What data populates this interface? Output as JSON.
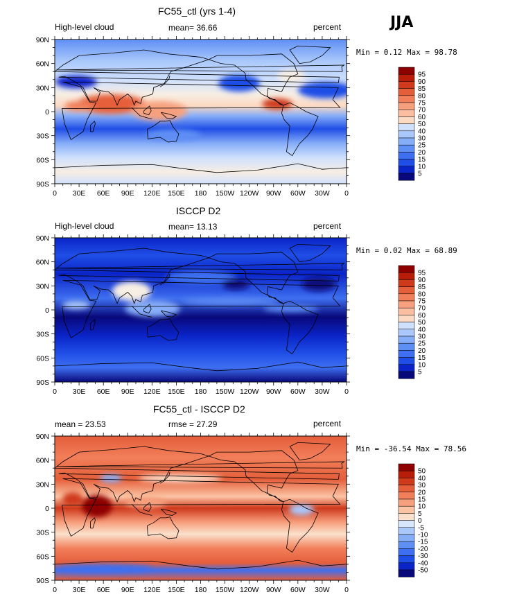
{
  "season": "JJA",
  "x_ticks": [
    "0",
    "30E",
    "60E",
    "90E",
    "120E",
    "150E",
    "180",
    "150W",
    "120W",
    "90W",
    "60W",
    "30W",
    "0"
  ],
  "y_ticks": [
    "90N",
    "60N",
    "30N",
    "0",
    "30S",
    "60S",
    "90S"
  ],
  "colors": {
    "abs_scale": [
      "#08087a",
      "#0a24c8",
      "#1f4ee6",
      "#3e6ff0",
      "#5e8ff5",
      "#86adf8",
      "#aac8fb",
      "#cfe0fd",
      "#f7eee4",
      "#fcd9c2",
      "#fbbea0",
      "#f7a07e",
      "#f17f5a",
      "#e55e3a",
      "#cf3a1d",
      "#b81d0a",
      "#8e0000"
    ],
    "diff_scale": [
      "#08087a",
      "#0a24c8",
      "#1f4ee6",
      "#3e6ff0",
      "#5e8ff5",
      "#86adf8",
      "#aac8fb",
      "#d8e6fc",
      "#fbe1cc",
      "#fbc4a4",
      "#f7a07e",
      "#f17f5a",
      "#e55e3a",
      "#cf3a1d",
      "#b81d0a",
      "#8e0000"
    ]
  },
  "panels": [
    {
      "title": "FC55_ctl (yrs 1-4)",
      "left_label": "High-level cloud",
      "center_label": "mean=  36.66",
      "right_label": "percent",
      "minmax": "Min =   0.12 Max =  98.78",
      "colorbar_labels": [
        "95",
        "90",
        "85",
        "80",
        "75",
        "70",
        "60",
        "50",
        "40",
        "30",
        "25",
        "20",
        "15",
        "10",
        "5"
      ]
    },
    {
      "title": "ISCCP D2",
      "left_label": "High-level cloud",
      "center_label": "mean=  13.13",
      "right_label": "percent",
      "minmax": "Min =   0.02 Max =  68.89",
      "colorbar_labels": [
        "95",
        "90",
        "85",
        "80",
        "75",
        "70",
        "60",
        "50",
        "40",
        "30",
        "25",
        "20",
        "15",
        "10",
        "5"
      ]
    },
    {
      "title": "FC55_ctl - ISCCP D2",
      "left_label": "mean =  23.53",
      "center_label": "rmse =  27.29",
      "right_label": "percent",
      "minmax": "Min = -36.54 Max =  78.56",
      "colorbar_labels": [
        "50",
        "40",
        "30",
        "20",
        "15",
        "10",
        "5",
        "0",
        "-5",
        "-10",
        "-15",
        "-20",
        "-30",
        "-40",
        "-50"
      ]
    }
  ]
}
